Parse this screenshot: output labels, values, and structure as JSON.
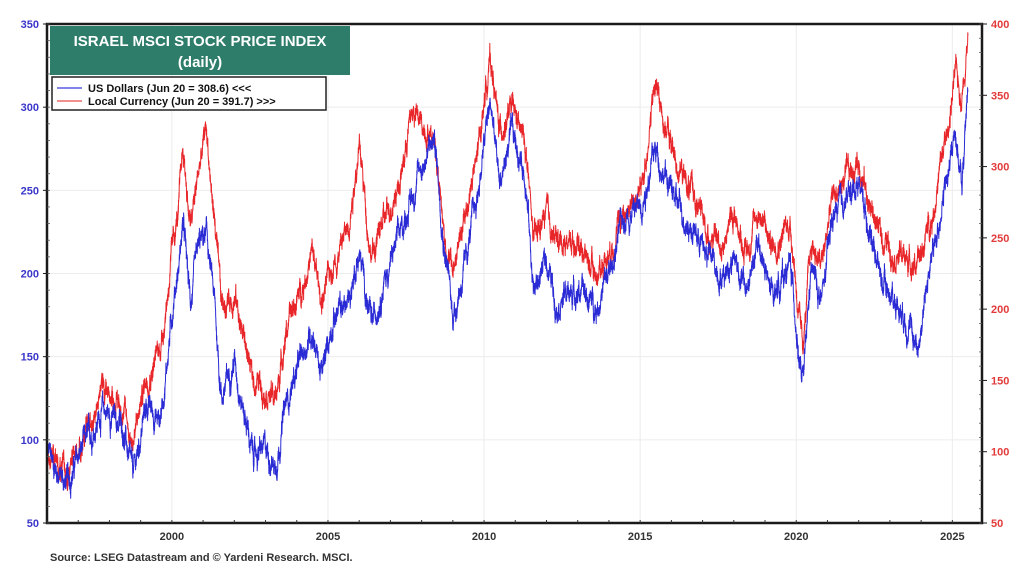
{
  "chart_data": {
    "type": "line",
    "title": "ISRAEL MSCI STOCK PRICE INDEX",
    "subtitle": "(daily)",
    "source": "Source: LSEG Datastream and © Yardeni Research. MSCI.",
    "xlabel": "",
    "ylabel_left": "",
    "ylabel_right": "",
    "xlim": [
      1996.0,
      2025.95
    ],
    "ylim_left": [
      50,
      350
    ],
    "ylim_right": [
      50,
      400
    ],
    "x_ticks": [
      "2000",
      "2005",
      "2010",
      "2015",
      "2020",
      "2025"
    ],
    "y_ticks_left": [
      "50",
      "100",
      "150",
      "200",
      "250",
      "300",
      "350"
    ],
    "y_ticks_right": [
      "50",
      "100",
      "150",
      "200",
      "250",
      "300",
      "350",
      "400"
    ],
    "grid": true,
    "legend_position": "top-left",
    "colors": {
      "usd": "#2b2bd6",
      "local": "#e8262a",
      "title_bg": "#2e7d6b",
      "left_axis": "#3a36c9",
      "right_axis": "#e23a3a"
    },
    "series": [
      {
        "name": "US Dollars (Jun 20 = 308.6) <<<",
        "axis": "left",
        "x": [
          1996.0,
          1996.6,
          1997.3,
          1997.8,
          1998.4,
          1998.75,
          1999.2,
          1999.6,
          2000.2,
          2000.35,
          2000.6,
          2000.9,
          2001.1,
          2001.3,
          2001.6,
          2002.0,
          2002.3,
          2002.6,
          2003.0,
          2003.3,
          2003.7,
          2004.0,
          2004.5,
          2004.8,
          2005.2,
          2005.6,
          2006.0,
          2006.4,
          2006.8,
          2007.3,
          2007.7,
          2008.0,
          2008.4,
          2008.8,
          2009.0,
          2009.3,
          2009.7,
          2010.2,
          2010.5,
          2010.9,
          2011.3,
          2011.6,
          2012.0,
          2012.3,
          2013.0,
          2013.6,
          2014.0,
          2014.5,
          2015.0,
          2015.5,
          2015.8,
          2016.2,
          2016.7,
          2017.2,
          2017.6,
          2018.0,
          2018.4,
          2018.8,
          2019.2,
          2019.8,
          2020.2,
          2020.5,
          2020.8,
          2021.2,
          2021.7,
          2022.0,
          2022.4,
          2022.8,
          2023.3,
          2023.9,
          2024.3,
          2024.8,
          2025.1,
          2025.3,
          2025.5
        ],
        "values": [
          92,
          74,
          100,
          118,
          109,
          79,
          121,
          112,
          202,
          229,
          184,
          217,
          223,
          193,
          127,
          148,
          118,
          91,
          94,
          85,
          124,
          142,
          166,
          139,
          175,
          181,
          211,
          169,
          196,
          223,
          247,
          265,
          280,
          208,
          175,
          196,
          238,
          301,
          256,
          283,
          262,
          190,
          208,
          184,
          190,
          181,
          199,
          235,
          241,
          274,
          259,
          241,
          226,
          211,
          199,
          211,
          190,
          217,
          187,
          205,
          133,
          202,
          184,
          235,
          247,
          256,
          223,
          193,
          181,
          157,
          205,
          253,
          286,
          253,
          309
        ]
      },
      {
        "name": "Local Currency (Jun 20 = 391.7) >>>",
        "axis": "right",
        "x": [
          1996.0,
          1996.6,
          1997.3,
          1997.8,
          1998.4,
          1998.75,
          1999.2,
          1999.6,
          2000.2,
          2000.35,
          2000.6,
          2000.9,
          2001.1,
          2001.3,
          2001.6,
          2002.0,
          2002.3,
          2002.6,
          2003.0,
          2003.3,
          2003.7,
          2004.0,
          2004.5,
          2004.8,
          2005.2,
          2005.6,
          2006.0,
          2006.4,
          2006.8,
          2007.3,
          2007.7,
          2008.0,
          2008.4,
          2008.8,
          2009.0,
          2009.3,
          2009.7,
          2010.2,
          2010.5,
          2010.9,
          2011.3,
          2011.6,
          2012.0,
          2012.3,
          2013.0,
          2013.6,
          2014.0,
          2014.5,
          2015.0,
          2015.5,
          2015.8,
          2016.2,
          2016.7,
          2017.2,
          2017.6,
          2018.0,
          2018.4,
          2018.8,
          2019.2,
          2019.8,
          2020.2,
          2020.5,
          2020.8,
          2021.2,
          2021.7,
          2022.0,
          2022.4,
          2022.8,
          2023.3,
          2023.9,
          2024.3,
          2024.8,
          2025.1,
          2025.3,
          2025.5
        ],
        "values": [
          102,
          83,
          115,
          146,
          132,
          108,
          153,
          171,
          266,
          311,
          259,
          301,
          326,
          276,
          203,
          210,
          181,
          150,
          146,
          136,
          188,
          206,
          238,
          206,
          234,
          255,
          311,
          238,
          262,
          290,
          339,
          329,
          322,
          241,
          227,
          255,
          297,
          375,
          326,
          339,
          318,
          248,
          266,
          248,
          248,
          224,
          241,
          269,
          280,
          357,
          329,
          301,
          280,
          252,
          245,
          266,
          241,
          269,
          245,
          259,
          174,
          245,
          231,
          280,
          294,
          304,
          269,
          248,
          238,
          231,
          262,
          318,
          364,
          350,
          392
        ]
      }
    ]
  }
}
